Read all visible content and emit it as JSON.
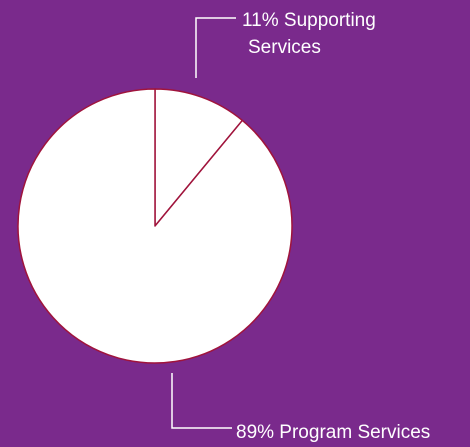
{
  "colors": {
    "background": "#7a2a8c",
    "slice_fill": "#ffffff",
    "slice_stroke": "#a0143c",
    "leader_line": "#ffffff"
  },
  "chart_data": {
    "type": "pie",
    "title": "",
    "slices": [
      {
        "label": "Supporting Services",
        "percent_label": "11%",
        "value": 11,
        "callout_lines": [
          "11% Supporting",
          "Services"
        ]
      },
      {
        "label": "Program Services",
        "percent_label": "89%",
        "value": 89,
        "callout_lines": [
          "89% Program Services"
        ]
      }
    ],
    "start_angle_deg": 0,
    "direction": "clockwise",
    "legend": "none"
  }
}
